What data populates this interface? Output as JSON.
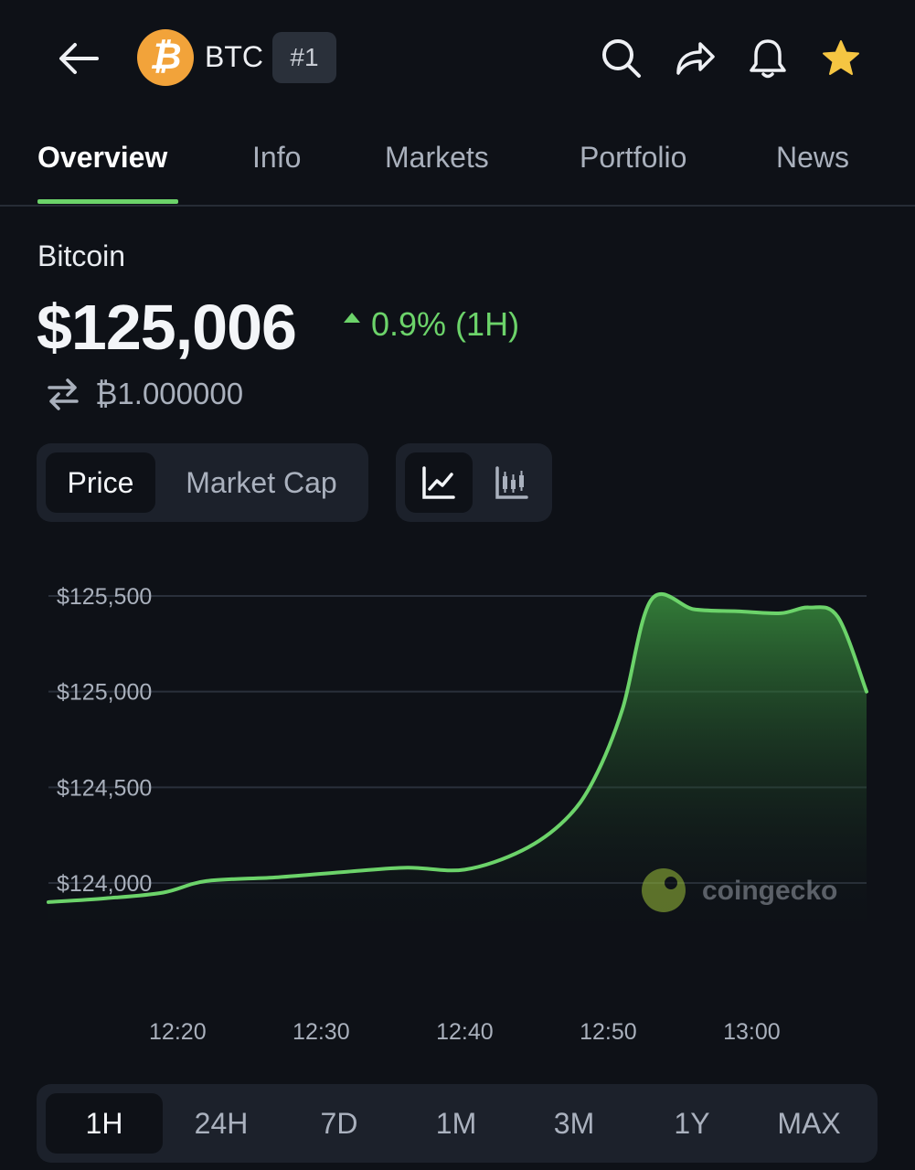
{
  "header": {
    "symbol": "BTC",
    "rank": "#1",
    "icons": [
      "back-arrow-icon",
      "bitcoin-logo-icon",
      "search-icon",
      "share-icon",
      "bell-icon",
      "star-icon"
    ],
    "star_color": "#f5c542"
  },
  "tabs": [
    {
      "label": "Overview",
      "active": true
    },
    {
      "label": "Info"
    },
    {
      "label": "Markets"
    },
    {
      "label": "Portfolio"
    },
    {
      "label": "News"
    }
  ],
  "coin": {
    "name": "Bitcoin",
    "price": "$125,006",
    "change": "0.9% (1H)",
    "btc_value": "₿1.000000"
  },
  "toggles": {
    "metric_options": [
      "Price",
      "Market Cap"
    ],
    "selected_metric": "Price",
    "chart_types": [
      "line-chart-icon",
      "candlestick-chart-icon"
    ],
    "selected_chart_type": "line-chart-icon"
  },
  "watermark": "coingecko",
  "ranges": [
    "1H",
    "24H",
    "7D",
    "1M",
    "3M",
    "1Y",
    "MAX"
  ],
  "selected_range": "1H",
  "colors": {
    "accent": "#6cd36a",
    "background": "#0e1117",
    "panel": "#1c212b"
  },
  "chart_data": {
    "type": "area",
    "x_ticks": [
      "12:20",
      "12:30",
      "12:40",
      "12:50",
      "13:00"
    ],
    "y_ticks": [
      "$125,500",
      "$125,000",
      "$124,500",
      "$124,000"
    ],
    "ylim": [
      124000,
      125500
    ],
    "x": [
      "12:11",
      "12:15",
      "12:19",
      "12:22",
      "12:27",
      "12:32",
      "12:36",
      "12:40",
      "12:44",
      "12:47",
      "12:49",
      "12:51",
      "12:53",
      "12:56",
      "12:59",
      "13:02",
      "13:04",
      "13:06",
      "13:08"
    ],
    "values": [
      123900,
      123920,
      123950,
      124010,
      124030,
      124060,
      124080,
      124070,
      124170,
      124330,
      124540,
      124910,
      125480,
      125430,
      125420,
      125410,
      125440,
      125390,
      125000
    ]
  }
}
